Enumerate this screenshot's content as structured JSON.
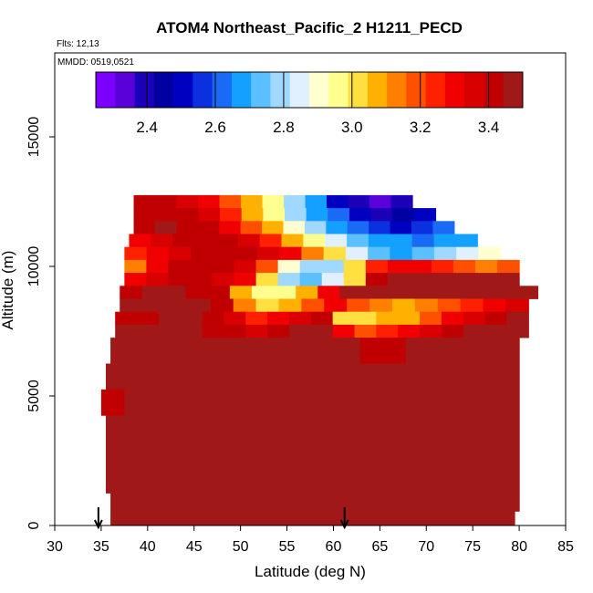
{
  "chart_data": {
    "type": "heatmap",
    "title": "ATOM4 Northeast_Pacific_2 H1211_PECD",
    "subtitle_flights": "Flts: 12,13",
    "subtitle_dates": "MMDD: 0519,0521",
    "xlabel": "Latitude (deg N)",
    "ylabel": "Altitude (m)",
    "xlim": [
      30,
      85
    ],
    "ylim": [
      0,
      17500
    ],
    "x_ticks": [
      "30",
      "35",
      "40",
      "45",
      "50",
      "55",
      "60",
      "65",
      "70",
      "75",
      "80",
      "85"
    ],
    "y_ticks": [
      "0",
      "5000",
      "10000",
      "15000"
    ],
    "colorbar": {
      "range": [
        2.25,
        3.5
      ],
      "tick_labels": [
        "2.4",
        "2.6",
        "2.8",
        "3.0",
        "3.2",
        "3.4"
      ],
      "tick_values": [
        2.4,
        2.6,
        2.8,
        3.0,
        3.2,
        3.4
      ],
      "colors": [
        "#7b00ff",
        "#5a00d8",
        "#1c00b8",
        "#0000a0",
        "#0000c0",
        "#0a30e0",
        "#1a6af5",
        "#14a0ff",
        "#5ac0ff",
        "#a0d8ff",
        "#e0f0ff",
        "#ffffd0",
        "#ffff90",
        "#ffe040",
        "#ffb000",
        "#ff8000",
        "#ff5000",
        "#ff2000",
        "#f00000",
        "#d80000",
        "#c00000",
        "#a01818"
      ]
    },
    "arrow_markers_latitude": [
      34.7,
      61.2
    ],
    "grid": false,
    "data_note": "Curtain of H1211_PECD values by latitude/altitude; mostly 3.3-3.5 (red) with low values (2.3-2.8, blue) near 10000-12500 m at 55-70 N",
    "rows": [
      {
        "alt": 12500,
        "lat_min": 38.5,
        "lat_max": 68.5,
        "values": [
          3.4,
          3.4,
          3.35,
          3.3,
          3.2,
          3.05,
          2.95,
          2.8,
          2.65,
          2.5,
          2.4,
          2.35,
          2.4
        ]
      },
      {
        "alt": 12000,
        "lat_min": 38.5,
        "lat_max": 71,
        "values": [
          3.4,
          3.4,
          3.4,
          3.35,
          3.25,
          3.1,
          2.95,
          2.8,
          2.7,
          2.6,
          2.5,
          2.4,
          2.45,
          2.5
        ]
      },
      {
        "alt": 11500,
        "lat_min": 38.5,
        "lat_max": 73,
        "values": [
          3.4,
          3.45,
          3.4,
          3.4,
          3.3,
          3.2,
          3.05,
          2.9,
          2.8,
          2.7,
          2.6,
          2.55,
          2.5,
          2.55,
          2.6
        ]
      },
      {
        "alt": 11000,
        "lat_min": 38,
        "lat_max": 75.5,
        "values": [
          3.3,
          3.35,
          3.4,
          3.4,
          3.4,
          3.35,
          3.25,
          3.1,
          2.95,
          2.85,
          2.75,
          2.7,
          2.65,
          2.6,
          2.65,
          2.7
        ]
      },
      {
        "alt": 10500,
        "lat_min": 37.5,
        "lat_max": 78,
        "values": [
          3.25,
          3.3,
          3.35,
          3.4,
          3.4,
          3.4,
          3.35,
          3.3,
          3.15,
          3.0,
          2.85,
          2.75,
          2.7,
          2.75,
          2.8,
          2.85,
          2.9
        ]
      },
      {
        "alt": 10000,
        "lat_min": 37.5,
        "lat_max": 80,
        "values": [
          3.15,
          3.3,
          3.4,
          3.4,
          3.4,
          3.35,
          3.2,
          2.9,
          2.8,
          2.8,
          3.0,
          3.25,
          3.3,
          3.3,
          3.25,
          3.2,
          3.15,
          3.2
        ]
      },
      {
        "alt": 9500,
        "lat_min": 37.5,
        "lat_max": 80,
        "values": [
          3.3,
          3.35,
          3.4,
          3.4,
          3.35,
          3.3,
          3.0,
          2.8,
          2.75,
          2.85,
          3.0,
          3.4,
          3.45,
          3.45,
          3.45,
          3.45,
          3.45,
          3.45
        ]
      },
      {
        "alt": 9000,
        "lat_min": 37,
        "lat_max": 82,
        "values": [
          3.4,
          3.45,
          3.45,
          3.4,
          3.4,
          3.1,
          2.95,
          2.95,
          3.05,
          3.3,
          3.45,
          3.45,
          3.45,
          3.45,
          3.45,
          3.45,
          3.45,
          3.45,
          3.45
        ]
      },
      {
        "alt": 8500,
        "lat_min": 37,
        "lat_max": 81,
        "values": [
          3.45,
          3.45,
          3.45,
          3.45,
          3.4,
          3.15,
          3.0,
          3.1,
          3.2,
          3.3,
          3.2,
          3.15,
          3.1,
          3.15,
          3.2,
          3.25,
          3.3,
          3.35
        ]
      },
      {
        "alt": 8000,
        "lat_min": 36.5,
        "lat_max": 81,
        "values": [
          3.4,
          3.4,
          3.45,
          3.45,
          3.4,
          3.35,
          3.25,
          3.3,
          3.35,
          3.4,
          3.0,
          3.0,
          3.05,
          3.1,
          3.2,
          3.3,
          3.35,
          3.4,
          3.45
        ]
      },
      {
        "alt": 7500,
        "lat_min": 36.5,
        "lat_max": 81,
        "values": [
          3.45,
          3.45,
          3.45,
          3.45,
          3.4,
          3.4,
          3.35,
          3.4,
          3.45,
          3.45,
          3.3,
          3.2,
          3.25,
          3.3,
          3.35,
          3.4,
          3.45,
          3.45,
          3.45
        ]
      },
      {
        "alt": 7000,
        "lat_min": 36,
        "lat_max": 80,
        "values": [
          3.45,
          3.45,
          3.45,
          3.45,
          3.45,
          3.45,
          3.45,
          3.45,
          3.45,
          3.45,
          3.45,
          3.4,
          3.4,
          3.45,
          3.45,
          3.45,
          3.45,
          3.45
        ]
      },
      {
        "alt": 6000,
        "lat_min": 35.5,
        "lat_max": 80,
        "values": [
          3.45,
          3.45,
          3.45,
          3.45,
          3.45,
          3.45,
          3.45,
          3.45,
          3.45,
          3.45,
          3.45,
          3.45,
          3.45,
          3.45,
          3.45,
          3.45,
          3.45,
          3.45
        ]
      },
      {
        "alt": 5000,
        "lat_min": 35,
        "lat_max": 80,
        "values": [
          3.4,
          3.45,
          3.45,
          3.45,
          3.45,
          3.45,
          3.45,
          3.45,
          3.45,
          3.45,
          3.45,
          3.45,
          3.45,
          3.45,
          3.45,
          3.45,
          3.45,
          3.45
        ]
      },
      {
        "alt": 4000,
        "lat_min": 35.5,
        "lat_max": 80,
        "values": [
          3.45,
          3.45,
          3.45,
          3.45,
          3.45,
          3.45,
          3.45,
          3.45,
          3.45,
          3.45,
          3.45,
          3.45,
          3.45,
          3.45,
          3.45,
          3.45,
          3.45,
          3.45
        ]
      },
      {
        "alt": 3000,
        "lat_min": 35.5,
        "lat_max": 80,
        "values": [
          3.45,
          3.45,
          3.45,
          3.45,
          3.45,
          3.45,
          3.45,
          3.45,
          3.45,
          3.45,
          3.45,
          3.45,
          3.45,
          3.45,
          3.45,
          3.45,
          3.45,
          3.45
        ]
      },
      {
        "alt": 2000,
        "lat_min": 35.5,
        "lat_max": 80,
        "values": [
          3.45,
          3.45,
          3.45,
          3.45,
          3.45,
          3.45,
          3.45,
          3.45,
          3.45,
          3.45,
          3.45,
          3.45,
          3.45,
          3.45,
          3.45,
          3.45,
          3.45,
          3.45
        ]
      },
      {
        "alt": 1000,
        "lat_min": 36,
        "lat_max": 80,
        "values": [
          3.45,
          3.45,
          3.45,
          3.45,
          3.45,
          3.45,
          3.45,
          3.45,
          3.45,
          3.45,
          3.45,
          3.45,
          3.45,
          3.45,
          3.45,
          3.45,
          3.45,
          3.45
        ]
      },
      {
        "alt": 300,
        "lat_min": 36,
        "lat_max": 79.5,
        "values": [
          3.45,
          3.45,
          3.45,
          3.45,
          3.45,
          3.45,
          3.45,
          3.45,
          3.45,
          3.45,
          3.45,
          3.45,
          3.45,
          3.45,
          3.45,
          3.45,
          3.45,
          3.45
        ]
      }
    ]
  }
}
